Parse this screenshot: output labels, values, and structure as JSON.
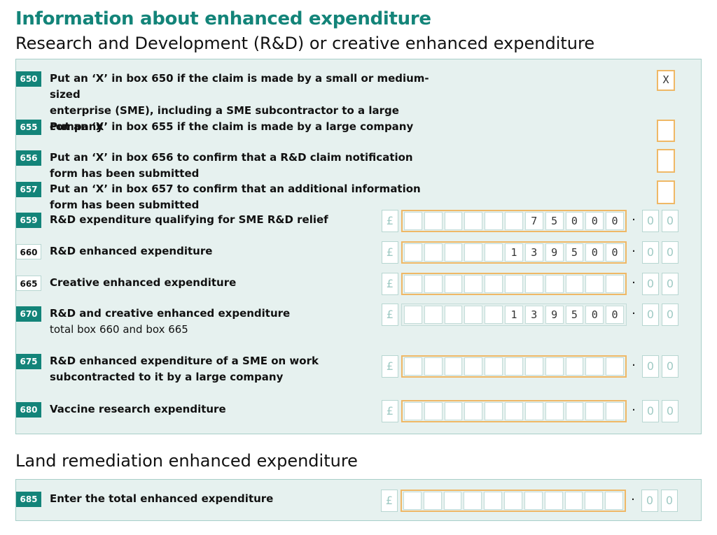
{
  "heading": "Information about enhanced expenditure",
  "section1_title": "Research and Development (R&D) or creative enhanced expenditure",
  "section2_title": "Land remediation enhanced expenditure",
  "currency_symbol": "£",
  "decimal_point": "·",
  "rows": {
    "r650": {
      "box": "650",
      "label": "Put an ‘X’ in box 650 if the claim is made by a small or medium-sized",
      "label2": "enterprise (SME), including a SME subcontractor to a large company",
      "value": "X"
    },
    "r655": {
      "box": "655",
      "label": "Put an ‘X’ in box 655 if the claim is made by a large company",
      "value": ""
    },
    "r656": {
      "box": "656",
      "label": "Put an ‘X’ in box 656 to confirm that a R&D claim notification form has been submitted",
      "value": ""
    },
    "r657": {
      "box": "657",
      "label": "Put an ‘X’ in box 657 to confirm that an additional information form has been submitted",
      "value": ""
    },
    "r659": {
      "box": "659",
      "label": "R&D expenditure qualifying for SME R&D relief",
      "digits": [
        "",
        "",
        "",
        "",
        "",
        "",
        "7",
        "5",
        "0",
        "0",
        "0"
      ],
      "pence": [
        "0",
        "0"
      ]
    },
    "r660": {
      "box": "660",
      "label": "R&D enhanced expenditure",
      "digits": [
        "",
        "",
        "",
        "",
        "",
        "1",
        "3",
        "9",
        "5",
        "0",
        "0"
      ],
      "pence": [
        "0",
        "0"
      ]
    },
    "r665": {
      "box": "665",
      "label": "Creative enhanced expenditure",
      "digits": [
        "",
        "",
        "",
        "",
        "",
        "",
        "",
        "",
        "",
        "",
        ""
      ],
      "pence": [
        "0",
        "0"
      ]
    },
    "r670": {
      "box": "670",
      "label": "R&D and creative enhanced expenditure",
      "label2": "total box 660 and box 665",
      "digits": [
        "",
        "",
        "",
        "",
        "",
        "1",
        "3",
        "9",
        "5",
        "0",
        "0"
      ],
      "pence": [
        "0",
        "0"
      ]
    },
    "r675": {
      "box": "675",
      "label": "R&D enhanced expenditure of a SME on work",
      "label2": "subcontracted to it by a large company",
      "digits": [
        "",
        "",
        "",
        "",
        "",
        "",
        "",
        "",
        "",
        "",
        ""
      ],
      "pence": [
        "0",
        "0"
      ]
    },
    "r680": {
      "box": "680",
      "label": "Vaccine research expenditure",
      "digits": [
        "",
        "",
        "",
        "",
        "",
        "",
        "",
        "",
        "",
        "",
        ""
      ],
      "pence": [
        "0",
        "0"
      ]
    },
    "r685": {
      "box": "685",
      "label": "Enter the total enhanced expenditure",
      "digits": [
        "",
        "",
        "",
        "",
        "",
        "",
        "",
        "",
        "",
        "",
        ""
      ],
      "pence": [
        "0",
        "0"
      ]
    }
  },
  "colors": {
    "brand_teal": "#138479",
    "panel_bg": "#e6f1ef",
    "highlight_orange": "#efb866"
  }
}
